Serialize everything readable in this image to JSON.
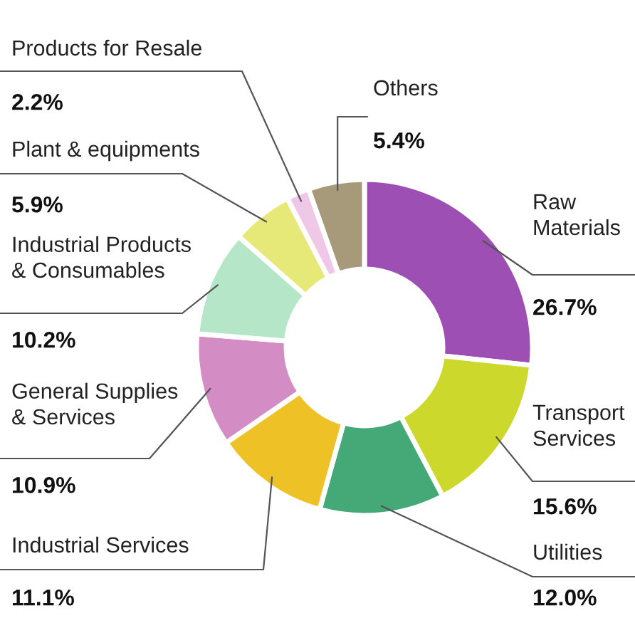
{
  "chart_data": {
    "type": "donut",
    "categories": [
      "Raw Materials",
      "Transport Services",
      "Utilities",
      "Industrial Services",
      "General Supplies & Services",
      "Industrial Products & Consumables",
      "Plant & equipments",
      "Products for Resale",
      "Others"
    ],
    "values": [
      26.7,
      15.6,
      12.0,
      11.1,
      10.9,
      10.2,
      5.9,
      2.2,
      5.4
    ],
    "value_labels": [
      "26.7%",
      "15.6%",
      "12.0%",
      "11.1%",
      "10.9%",
      "10.2%",
      "5.9%",
      "2.2%",
      "5.4%"
    ],
    "colors": [
      "#9d4fb4",
      "#ccd92c",
      "#44a877",
      "#eec127",
      "#d38cc4",
      "#b5e6c8",
      "#e6e878",
      "#eec8e6",
      "#a69a7a"
    ]
  }
}
